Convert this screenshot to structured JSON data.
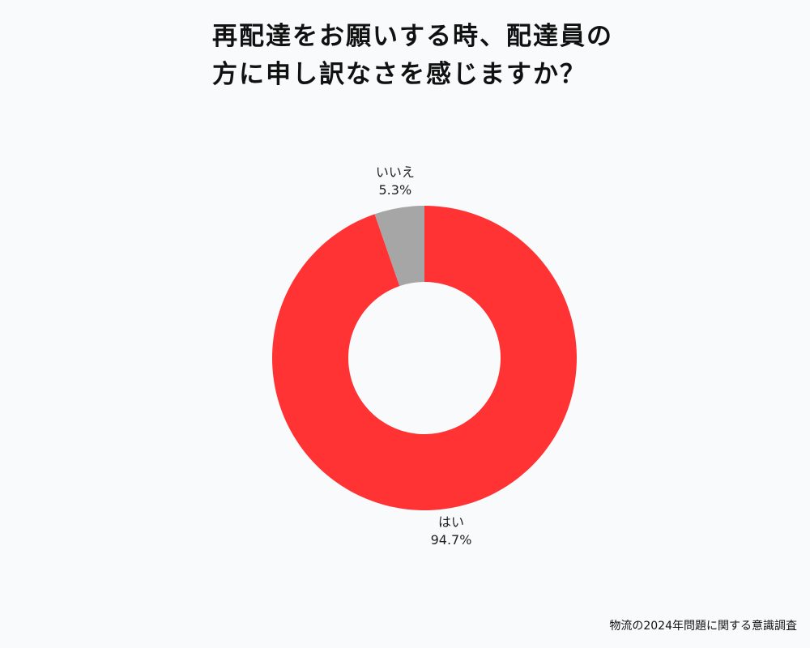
{
  "title": "再配達をお願いする時、配達員の方に申し訳なさを感じますか？",
  "source": "物流の2024年問題に関する意識調査",
  "chart_data": {
    "type": "pie",
    "donut": true,
    "title": "再配達をお願いする時、配達員の方に申し訳なさを感じますか？",
    "slices": [
      {
        "label": "はい",
        "value": 94.7,
        "display": "94.7%",
        "color": "#ff3333"
      },
      {
        "label": "いいえ",
        "value": 5.3,
        "display": "5.3%",
        "color": "#a6a6a6"
      }
    ],
    "start": "top",
    "direction": "clockwise"
  }
}
